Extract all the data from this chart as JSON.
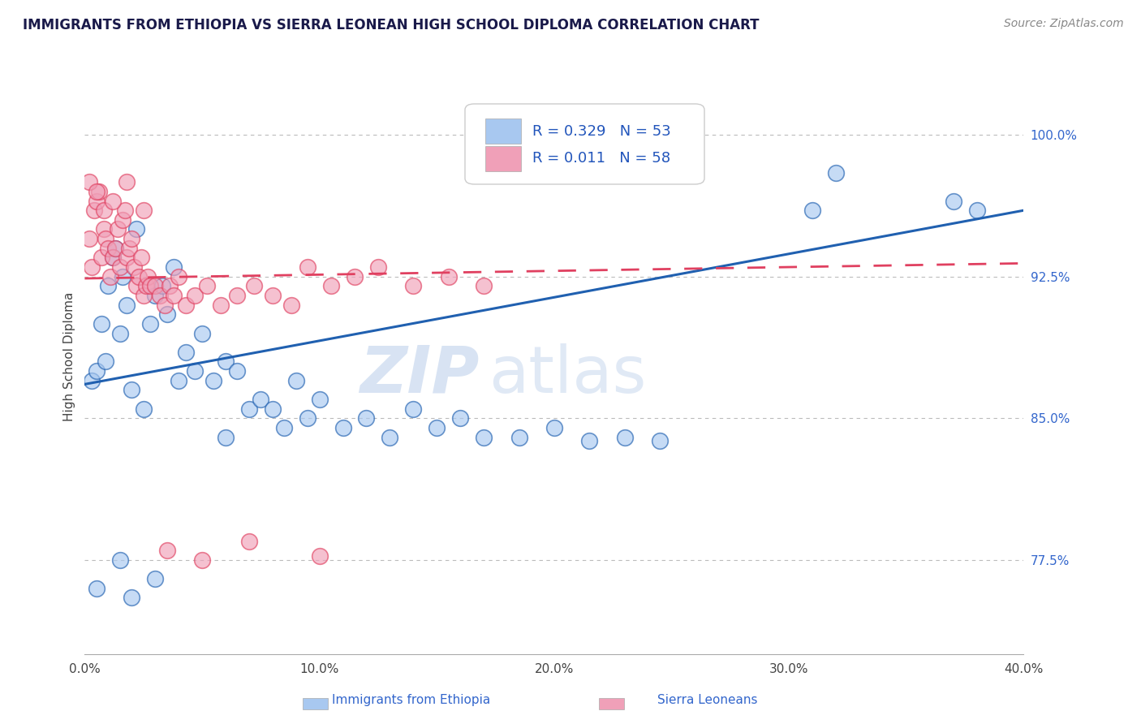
{
  "title": "IMMIGRANTS FROM ETHIOPIA VS SIERRA LEONEAN HIGH SCHOOL DIPLOMA CORRELATION CHART",
  "source": "Source: ZipAtlas.com",
  "ylabel": "High School Diploma",
  "ylabel_right_labels": [
    "100.0%",
    "92.5%",
    "85.0%",
    "77.5%"
  ],
  "ylabel_right_values": [
    1.0,
    0.925,
    0.85,
    0.775
  ],
  "xlim": [
    0.0,
    0.4
  ],
  "ylim": [
    0.725,
    1.04
  ],
  "legend_label1": "Immigrants from Ethiopia",
  "legend_label2": "Sierra Leoneans",
  "R1": 0.329,
  "N1": 53,
  "R2": 0.011,
  "N2": 58,
  "color_blue": "#A8C8F0",
  "color_pink": "#F0A0B8",
  "line_blue": "#2060B0",
  "line_pink": "#E04060",
  "watermark_zip": "ZIP",
  "watermark_atlas": "atlas",
  "blue_x": [
    0.003,
    0.005,
    0.007,
    0.009,
    0.01,
    0.012,
    0.013,
    0.015,
    0.016,
    0.018,
    0.02,
    0.022,
    0.025,
    0.028,
    0.03,
    0.033,
    0.035,
    0.038,
    0.04,
    0.043,
    0.047,
    0.05,
    0.055,
    0.06,
    0.065,
    0.07,
    0.075,
    0.08,
    0.085,
    0.09,
    0.095,
    0.1,
    0.11,
    0.12,
    0.13,
    0.14,
    0.15,
    0.16,
    0.17,
    0.185,
    0.2,
    0.215,
    0.23,
    0.245,
    0.005,
    0.015,
    0.02,
    0.03,
    0.06,
    0.31,
    0.32,
    0.37,
    0.38
  ],
  "blue_y": [
    0.87,
    0.875,
    0.9,
    0.88,
    0.92,
    0.935,
    0.94,
    0.895,
    0.925,
    0.91,
    0.865,
    0.95,
    0.855,
    0.9,
    0.915,
    0.92,
    0.905,
    0.93,
    0.87,
    0.885,
    0.875,
    0.895,
    0.87,
    0.88,
    0.875,
    0.855,
    0.86,
    0.855,
    0.845,
    0.87,
    0.85,
    0.86,
    0.845,
    0.85,
    0.84,
    0.855,
    0.845,
    0.85,
    0.84,
    0.84,
    0.845,
    0.838,
    0.84,
    0.838,
    0.76,
    0.775,
    0.755,
    0.765,
    0.84,
    0.96,
    0.98,
    0.965,
    0.96
  ],
  "pink_x": [
    0.002,
    0.003,
    0.004,
    0.005,
    0.006,
    0.007,
    0.008,
    0.009,
    0.01,
    0.011,
    0.012,
    0.013,
    0.014,
    0.015,
    0.016,
    0.017,
    0.018,
    0.019,
    0.02,
    0.021,
    0.022,
    0.023,
    0.024,
    0.025,
    0.026,
    0.027,
    0.028,
    0.03,
    0.032,
    0.034,
    0.036,
    0.038,
    0.04,
    0.043,
    0.047,
    0.052,
    0.058,
    0.065,
    0.072,
    0.08,
    0.088,
    0.095,
    0.105,
    0.115,
    0.125,
    0.14,
    0.155,
    0.17,
    0.002,
    0.005,
    0.008,
    0.012,
    0.018,
    0.025,
    0.035,
    0.05,
    0.07,
    0.1
  ],
  "pink_y": [
    0.945,
    0.93,
    0.96,
    0.965,
    0.97,
    0.935,
    0.95,
    0.945,
    0.94,
    0.925,
    0.935,
    0.94,
    0.95,
    0.93,
    0.955,
    0.96,
    0.935,
    0.94,
    0.945,
    0.93,
    0.92,
    0.925,
    0.935,
    0.915,
    0.92,
    0.925,
    0.92,
    0.92,
    0.915,
    0.91,
    0.92,
    0.915,
    0.925,
    0.91,
    0.915,
    0.92,
    0.91,
    0.915,
    0.92,
    0.915,
    0.91,
    0.93,
    0.92,
    0.925,
    0.93,
    0.92,
    0.925,
    0.92,
    0.975,
    0.97,
    0.96,
    0.965,
    0.975,
    0.96,
    0.78,
    0.775,
    0.785,
    0.777
  ]
}
